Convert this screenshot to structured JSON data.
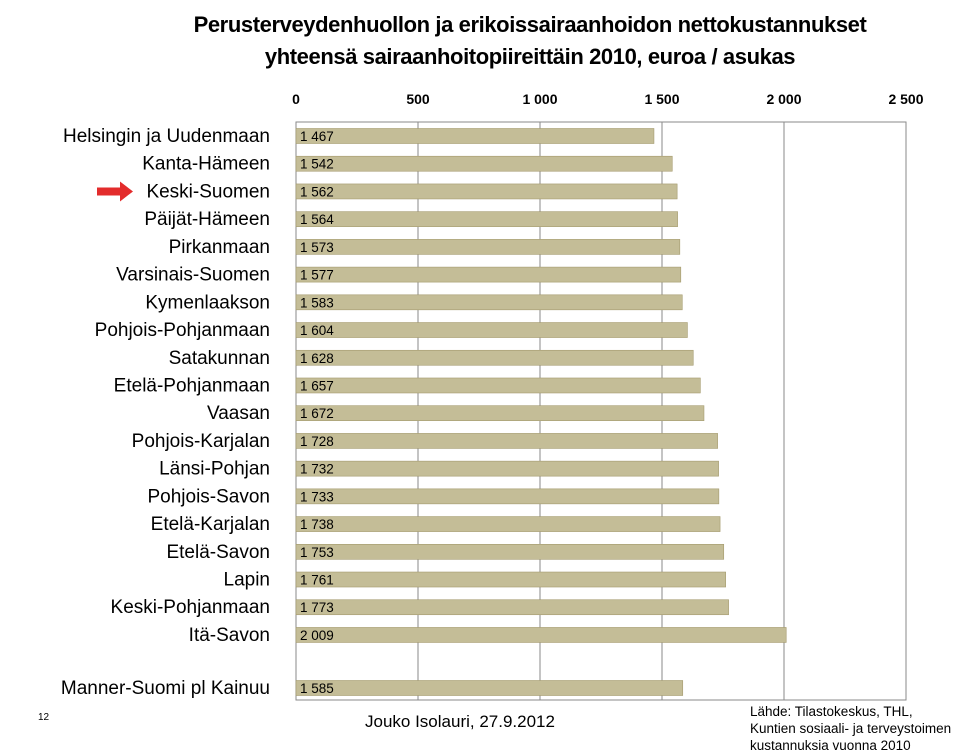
{
  "page_number": "12",
  "author": "Jouko Isolauri, 27.9.2012",
  "source_lines": [
    "Lähde: Tilastokeskus, THL,",
    "Kuntien sosiaali- ja terveystoimen",
    "kustannuksia vuonna 2010"
  ],
  "colors": {
    "bar_fill": "#c4bd97",
    "bar_stroke": "#a49a6d",
    "arrow": "#e32c2c",
    "grid": "#8a8a8a"
  },
  "chart_data": {
    "type": "bar",
    "orientation": "horizontal",
    "title": "Perusterveydenhuollon ja erikoissairaanhoidon nettokustannukset",
    "subtitle": "yhteensä sairaanhoitopiireittäin 2010,    euroa / asukas",
    "xlim": [
      0,
      2500
    ],
    "x_ticks": [
      {
        "value": 0,
        "label": "0"
      },
      {
        "value": 500,
        "label": "500"
      },
      {
        "value": 1000,
        "label": "1 000"
      },
      {
        "value": 1500,
        "label": "1 500"
      },
      {
        "value": 2000,
        "label": "2 000"
      },
      {
        "value": 2500,
        "label": "2 500"
      }
    ],
    "x_axis_position": "top",
    "vertical_gridlines": true,
    "highlight_arrow": "Keski-Suomen",
    "categories": [
      "Helsingin ja Uudenmaan",
      "Kanta-Hämeen",
      "Keski-Suomen",
      "Päijät-Hämeen",
      "Pirkanmaan",
      "Varsinais-Suomen",
      "Kymenlaakson",
      "Pohjois-Pohjanmaan",
      "Satakunnan",
      "Etelä-Pohjanmaan",
      "Vaasan",
      "Pohjois-Karjalan",
      "Länsi-Pohjan",
      "Pohjois-Savon",
      "Etelä-Karjalan",
      "Etelä-Savon",
      "Lapin",
      "Keski-Pohjanmaan",
      "Itä-Savon"
    ],
    "values": [
      1467,
      1542,
      1562,
      1564,
      1573,
      1577,
      1583,
      1604,
      1628,
      1657,
      1672,
      1728,
      1732,
      1733,
      1738,
      1753,
      1761,
      1773,
      2009
    ],
    "value_labels": [
      "1 467",
      "1 542",
      "1 562",
      "1 564",
      "1 573",
      "1 577",
      "1 583",
      "1 604",
      "1 628",
      "1 657",
      "1 672",
      "1 728",
      "1 732",
      "1 733",
      "1 738",
      "1 753",
      "1 761",
      "1 773",
      "2 009"
    ],
    "total": {
      "category": "Manner-Suomi pl Kainuu",
      "value": 1585,
      "value_label": "1 585"
    }
  }
}
